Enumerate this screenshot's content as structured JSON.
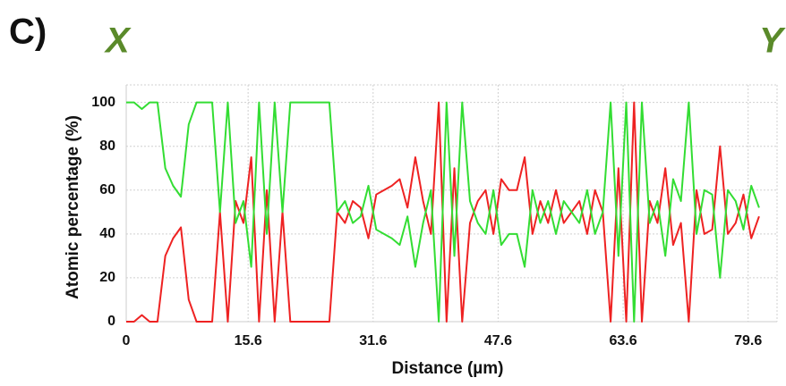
{
  "panel_label": "C)",
  "start_label": "X",
  "end_label": "Y",
  "chart_data": {
    "type": "line",
    "xlabel": "Distance (µm)",
    "ylabel": "Atomic percentage (%)",
    "x": [
      0,
      1,
      2,
      3,
      4,
      5,
      6,
      7,
      8,
      9,
      10,
      11,
      12,
      13,
      14,
      15,
      16,
      17,
      18,
      19,
      20,
      21,
      22,
      23,
      24,
      25,
      26,
      27,
      28,
      29,
      30,
      31,
      32,
      33,
      34,
      35,
      36,
      37,
      38,
      39,
      40,
      41,
      42,
      43,
      44,
      45,
      46,
      47,
      48,
      49,
      50,
      51,
      52,
      53,
      54,
      55,
      56,
      57,
      58,
      59,
      60,
      61,
      62,
      63,
      64,
      65,
      66,
      67,
      68,
      69,
      70,
      71,
      72,
      73,
      74,
      75,
      76,
      77,
      78,
      79,
      80,
      81
    ],
    "series": [
      {
        "color": "#ee2222",
        "values": [
          0,
          0,
          3,
          0,
          0,
          30,
          38,
          43,
          10,
          0,
          0,
          0,
          50,
          0,
          55,
          45,
          75,
          0,
          60,
          0,
          50,
          0,
          0,
          0,
          0,
          0,
          0,
          50,
          45,
          55,
          52,
          38,
          58,
          60,
          62,
          65,
          52,
          75,
          55,
          40,
          100,
          0,
          70,
          0,
          45,
          55,
          60,
          40,
          65,
          60,
          60,
          75,
          40,
          55,
          45,
          60,
          45,
          50,
          55,
          40,
          60,
          50,
          0,
          70,
          0,
          100,
          0,
          55,
          45,
          70,
          35,
          45,
          0,
          60,
          40,
          42,
          80,
          40,
          45,
          58,
          38,
          48
        ]
      },
      {
        "color": "#33dd33",
        "values": [
          100,
          100,
          97,
          100,
          100,
          70,
          62,
          57,
          90,
          100,
          100,
          100,
          50,
          100,
          45,
          55,
          25,
          100,
          40,
          100,
          50,
          100,
          100,
          100,
          100,
          100,
          100,
          50,
          55,
          45,
          48,
          62,
          42,
          40,
          38,
          35,
          48,
          25,
          45,
          60,
          0,
          100,
          30,
          100,
          55,
          45,
          40,
          60,
          35,
          40,
          40,
          25,
          60,
          45,
          55,
          40,
          55,
          50,
          45,
          60,
          40,
          50,
          100,
          30,
          100,
          0,
          100,
          45,
          55,
          30,
          65,
          55,
          100,
          40,
          60,
          58,
          20,
          60,
          55,
          42,
          62,
          52
        ]
      }
    ],
    "xlim": [
      0,
      83.3
    ],
    "ylim": [
      0,
      108
    ],
    "xticks": [
      0,
      15.6,
      31.6,
      47.6,
      63.6,
      79.6
    ],
    "yticks": [
      0,
      20,
      40,
      60,
      80,
      100
    ],
    "grid": true
  }
}
